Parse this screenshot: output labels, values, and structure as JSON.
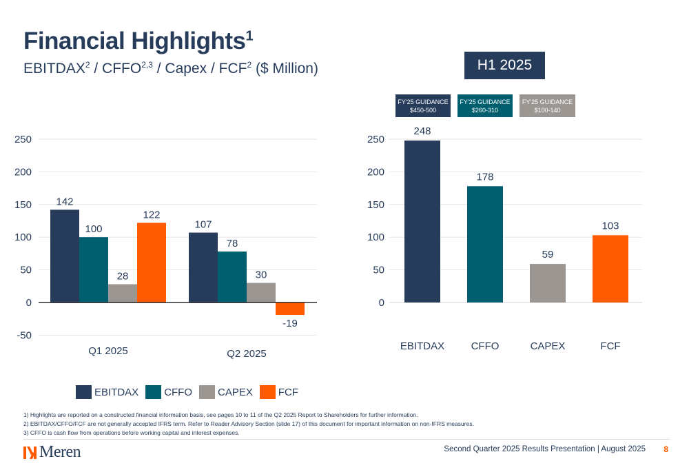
{
  "header": {
    "title": "Financial Highlights",
    "title_sup": "1",
    "subtitle_parts": [
      {
        "text": "EBITDAX",
        "sup": "2"
      },
      {
        "text": " / CFFO",
        "sup": "2,3"
      },
      {
        "text": " / Capex / FCF",
        "sup": "2"
      },
      {
        "text": " ($ Million)",
        "sup": ""
      }
    ]
  },
  "h1_label": "H1 2025",
  "guidance": [
    {
      "line1": "FY'25 GUIDANCE",
      "line2": "$450-500"
    },
    {
      "line1": "FY'25 GUIDANCE",
      "line2": "$260-310"
    },
    {
      "line1": "FY'25 GUIDANCE",
      "line2": "$100-140"
    }
  ],
  "colors": {
    "EBITDAX": "#263c5a",
    "CFFO": "#005f6e",
    "CAPEX": "#9b9691",
    "FCF": "#ff5a00"
  },
  "chart_data": [
    {
      "type": "bar",
      "categories": [
        "Q1 2025",
        "Q2 2025"
      ],
      "series": [
        {
          "name": "EBITDAX",
          "values": [
            142,
            107
          ]
        },
        {
          "name": "CFFO",
          "values": [
            100,
            78
          ]
        },
        {
          "name": "CAPEX",
          "values": [
            28,
            30
          ]
        },
        {
          "name": "FCF",
          "values": [
            122,
            -19
          ]
        }
      ],
      "ylim": [
        -50,
        250
      ],
      "yticks": [
        "250",
        "200",
        "150",
        "100",
        "50",
        "0",
        "-50"
      ],
      "ytick_values": [
        250,
        200,
        150,
        100,
        50,
        0,
        -50
      ],
      "grid": true,
      "legend": "bottom"
    },
    {
      "type": "bar",
      "categories": [
        "EBITDAX",
        "CFFO",
        "CAPEX",
        "FCF"
      ],
      "values": [
        248,
        178,
        59,
        103
      ],
      "title": "H1 2025",
      "ylim": [
        0,
        250
      ],
      "yticks": [
        "250",
        "200",
        "150",
        "100",
        "50",
        "0"
      ],
      "ytick_values": [
        250,
        200,
        150,
        100,
        50,
        0
      ],
      "grid": true
    }
  ],
  "legend": [
    "EBITDAX",
    "CFFO",
    "CAPEX",
    "FCF"
  ],
  "footnotes": [
    "1)  Highlights are reported on a constructed financial information basis, see pages 10 to 11 of the Q2 2025 Report to Shareholders for further information.",
    "2)  EBITDAX/CFFO/FCF are not generally accepted IFRS term. Refer to Reader Advisory Section (slide 17) of this document for important information on non-IFRS measures.",
    "3)  CFFO is cash flow from operations before working capital and interest expenses."
  ],
  "footer": {
    "logo_text": "Meren",
    "text": "Second Quarter 2025 Results Presentation | August 2025",
    "page": "8"
  }
}
